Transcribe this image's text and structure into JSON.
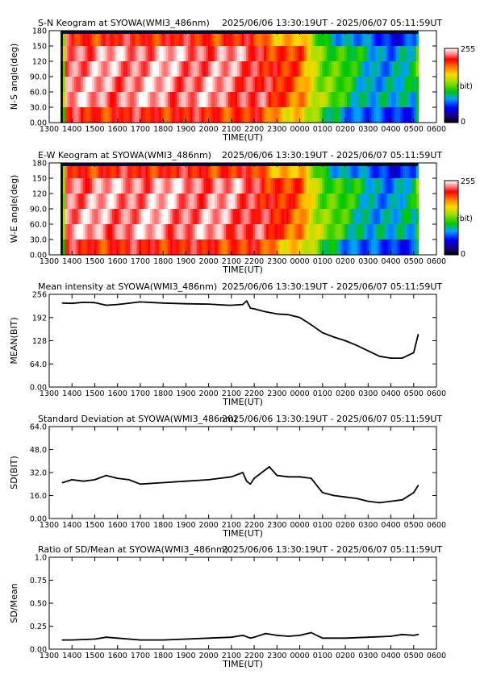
{
  "chart_data": [
    {
      "type": "heatmap",
      "title": "S-N Keogram at SYOWA(WMI3_486nm)",
      "time_range": "2025/06/06 13:30:19UT - 2025/06/07 05:11:59UT",
      "xlabel": "TIME(UT)",
      "ylabel": "N-S angle(deg)",
      "x_ticks": [
        "1300",
        "1400",
        "1500",
        "1600",
        "1700",
        "1800",
        "1900",
        "2000",
        "2100",
        "2200",
        "2300",
        "0000",
        "0100",
        "0200",
        "0300",
        "0400",
        "0500",
        "0600"
      ],
      "y_ticks": [
        "0.00",
        "30.0",
        "60.0",
        "90.0",
        "120",
        "150",
        "180"
      ],
      "ylim": [
        0,
        180
      ],
      "colorbar": {
        "min_label": "0",
        "max_label": "255",
        "unit": "(bit)"
      },
      "intensity_profile": [
        {
          "time": "1330",
          "value": 0
        },
        {
          "time": "1340",
          "value": 240
        },
        {
          "time": "1500",
          "value": 236
        },
        {
          "time": "1700",
          "value": 240
        },
        {
          "time": "2000",
          "value": 236
        },
        {
          "time": "2200",
          "value": 230
        },
        {
          "time": "2300",
          "value": 205
        },
        {
          "time": "0000",
          "value": 195
        },
        {
          "time": "0030",
          "value": 160
        },
        {
          "time": "0100",
          "value": 130
        },
        {
          "time": "0200",
          "value": 110
        },
        {
          "time": "0300",
          "value": 90
        },
        {
          "time": "0400",
          "value": 80
        },
        {
          "time": "0500",
          "value": 95
        },
        {
          "time": "0512",
          "value": 140
        }
      ]
    },
    {
      "type": "heatmap",
      "title": "E-W Keogram at SYOWA(WMI3_486nm)",
      "time_range": "2025/06/06 13:30:19UT - 2025/06/07 05:11:59UT",
      "xlabel": "TIME(UT)",
      "ylabel": "W-E angle(deg)",
      "x_ticks": [
        "1300",
        "1400",
        "1500",
        "1600",
        "1700",
        "1800",
        "1900",
        "2000",
        "2100",
        "2200",
        "2300",
        "0000",
        "0100",
        "0200",
        "0300",
        "0400",
        "0500",
        "0600"
      ],
      "y_ticks": [
        "0.00",
        "30.0",
        "60.0",
        "90.0",
        "120",
        "150",
        "180"
      ],
      "ylim": [
        0,
        180
      ],
      "colorbar": {
        "min_label": "0",
        "max_label": "255",
        "unit": "(bit)"
      },
      "intensity_profile": [
        {
          "time": "1330",
          "value": 0
        },
        {
          "time": "1340",
          "value": 240
        },
        {
          "time": "1500",
          "value": 236
        },
        {
          "time": "1700",
          "value": 240
        },
        {
          "time": "2000",
          "value": 236
        },
        {
          "time": "2200",
          "value": 230
        },
        {
          "time": "2300",
          "value": 205
        },
        {
          "time": "0000",
          "value": 195
        },
        {
          "time": "0030",
          "value": 160
        },
        {
          "time": "0100",
          "value": 130
        },
        {
          "time": "0200",
          "value": 110
        },
        {
          "time": "0300",
          "value": 90
        },
        {
          "time": "0400",
          "value": 80
        },
        {
          "time": "0500",
          "value": 95
        },
        {
          "time": "0512",
          "value": 140
        }
      ]
    },
    {
      "type": "line",
      "title": "Mean intensity at SYOWA(WMI3_486nm)",
      "time_range": "2025/06/06 13:30:19UT - 2025/06/07 05:11:59UT",
      "xlabel": "TIME(UT)",
      "ylabel": "MEAN(BIT)",
      "x_ticks": [
        "1300",
        "1400",
        "1500",
        "1600",
        "1700",
        "1800",
        "1900",
        "2000",
        "2100",
        "2200",
        "2300",
        "0000",
        "0100",
        "0200",
        "0300",
        "0400",
        "0500",
        "0600"
      ],
      "y_ticks": [
        "0.00",
        "64.0",
        "128",
        "192",
        "256"
      ],
      "ylim": [
        0,
        256
      ],
      "x": [
        "1335",
        "1400",
        "1430",
        "1500",
        "1530",
        "1600",
        "1700",
        "1800",
        "1900",
        "2000",
        "2050",
        "2100",
        "2130",
        "2140",
        "2150",
        "2200",
        "2230",
        "2300",
        "2330",
        "0000",
        "0030",
        "0100",
        "0130",
        "0200",
        "0230",
        "0300",
        "0330",
        "0400",
        "0430",
        "0500",
        "0512"
      ],
      "values": [
        232,
        231,
        234,
        233,
        226,
        228,
        235,
        232,
        230,
        229,
        226,
        226,
        228,
        238,
        218,
        216,
        208,
        202,
        200,
        192,
        172,
        150,
        138,
        128,
        115,
        100,
        85,
        80,
        80,
        95,
        145
      ]
    },
    {
      "type": "line",
      "title": "Standard Deviation at SYOWA(WMI3_486nm)",
      "time_range": "2025/06/06 13:30:19UT - 2025/06/07 05:11:59UT",
      "xlabel": "TIME(UT)",
      "ylabel": "SD(BIT)",
      "x_ticks": [
        "1300",
        "1400",
        "1500",
        "1600",
        "1700",
        "1800",
        "1900",
        "2000",
        "2100",
        "2200",
        "2300",
        "0000",
        "0100",
        "0200",
        "0300",
        "0400",
        "0500",
        "0600"
      ],
      "y_ticks": [
        "0.00",
        "16.0",
        "32.0",
        "48.0",
        "64.0"
      ],
      "ylim": [
        0,
        64
      ],
      "x": [
        "1335",
        "1400",
        "1430",
        "1500",
        "1530",
        "1600",
        "1630",
        "1700",
        "1800",
        "1900",
        "2000",
        "2100",
        "2130",
        "2140",
        "2150",
        "2200",
        "2230",
        "2240",
        "2300",
        "2330",
        "0000",
        "0030",
        "0100",
        "0130",
        "0200",
        "0230",
        "0300",
        "0330",
        "0400",
        "0430",
        "0500",
        "0512"
      ],
      "values": [
        25,
        27,
        26,
        27,
        30,
        28,
        27,
        24,
        25,
        26,
        27,
        29,
        32,
        26,
        24,
        28,
        34,
        36,
        30,
        29,
        29,
        28,
        18,
        16,
        15,
        14,
        12,
        11,
        12,
        13,
        18,
        23
      ]
    },
    {
      "type": "line",
      "title": "Ratio of SD/Mean at SYOWA(WMI3_486nm)",
      "time_range": "2025/06/06 13:30:19UT - 2025/06/07 05:11:59UT",
      "xlabel": "TIME(UT)",
      "ylabel": "SD/Mean",
      "x_ticks": [
        "1300",
        "1400",
        "1500",
        "1600",
        "1700",
        "1800",
        "1900",
        "2000",
        "2100",
        "2200",
        "2300",
        "0000",
        "0100",
        "0200",
        "0300",
        "0400",
        "0500",
        "0600"
      ],
      "y_ticks": [
        "0.00",
        "0.25",
        "0.50",
        "0.75",
        "1.0"
      ],
      "ylim": [
        0,
        1.0
      ],
      "x": [
        "1335",
        "1400",
        "1500",
        "1530",
        "1600",
        "1700",
        "1800",
        "1900",
        "2000",
        "2100",
        "2130",
        "2150",
        "2200",
        "2230",
        "2300",
        "2330",
        "0000",
        "0030",
        "0100",
        "0130",
        "0200",
        "0300",
        "0400",
        "0430",
        "0500",
        "0512"
      ],
      "values": [
        0.1,
        0.1,
        0.11,
        0.13,
        0.12,
        0.1,
        0.1,
        0.11,
        0.12,
        0.13,
        0.15,
        0.12,
        0.13,
        0.17,
        0.15,
        0.14,
        0.15,
        0.18,
        0.12,
        0.12,
        0.12,
        0.13,
        0.14,
        0.16,
        0.15,
        0.16
      ]
    }
  ]
}
